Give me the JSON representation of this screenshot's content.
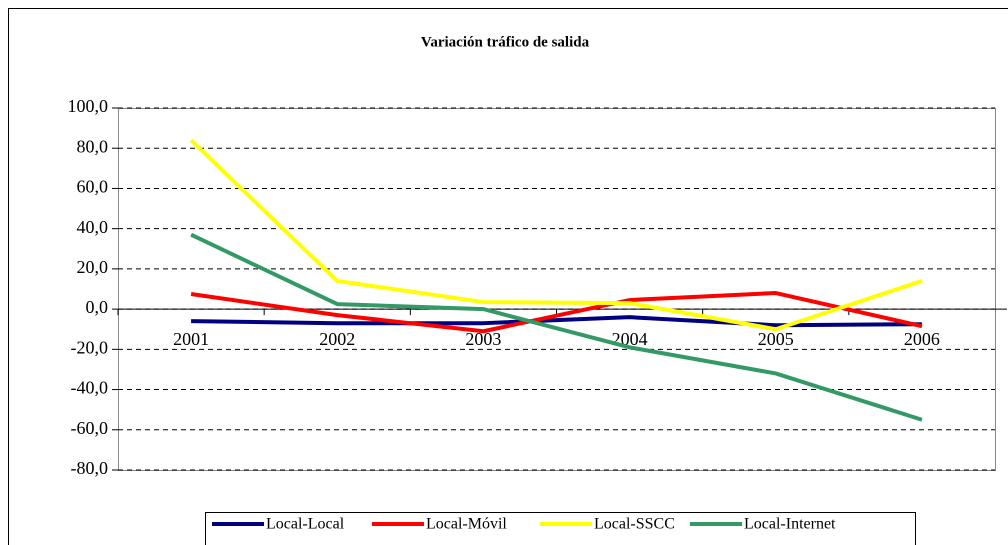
{
  "chart_data": {
    "type": "line",
    "title": "Variación tráfico de salida",
    "categories": [
      "2001",
      "2002",
      "2003",
      "2004",
      "2005",
      "2006"
    ],
    "series": [
      {
        "name": "Local-Local",
        "color": "#000080",
        "values": [
          -6,
          -7,
          -7,
          -4,
          -8,
          -7.5
        ]
      },
      {
        "name": "Local-Móvil",
        "color": "#ff0000",
        "values": [
          7.5,
          -3,
          -11,
          4.5,
          8,
          -8.5
        ]
      },
      {
        "name": "Local-SSCC",
        "color": "#ffff00",
        "values": [
          84,
          14,
          3.5,
          3,
          -10,
          14
        ]
      },
      {
        "name": "Local-Internet",
        "color": "#339966",
        "values": [
          37,
          2.5,
          0,
          -19,
          -32,
          -55
        ]
      }
    ],
    "ylim": [
      -80,
      100
    ],
    "yticks": [
      {
        "value": -80,
        "label": "-80,0"
      },
      {
        "value": -60,
        "label": "-60,0"
      },
      {
        "value": -40,
        "label": "-40,0"
      },
      {
        "value": -20,
        "label": "-20,0"
      },
      {
        "value": 0,
        "label": "0,0"
      },
      {
        "value": 20,
        "label": "20,0"
      },
      {
        "value": 40,
        "label": "40,0"
      },
      {
        "value": 60,
        "label": "60,0"
      },
      {
        "value": 80,
        "label": "80,0"
      },
      {
        "value": 100,
        "label": "100,0"
      }
    ],
    "grid": true,
    "legend": "bottom"
  }
}
